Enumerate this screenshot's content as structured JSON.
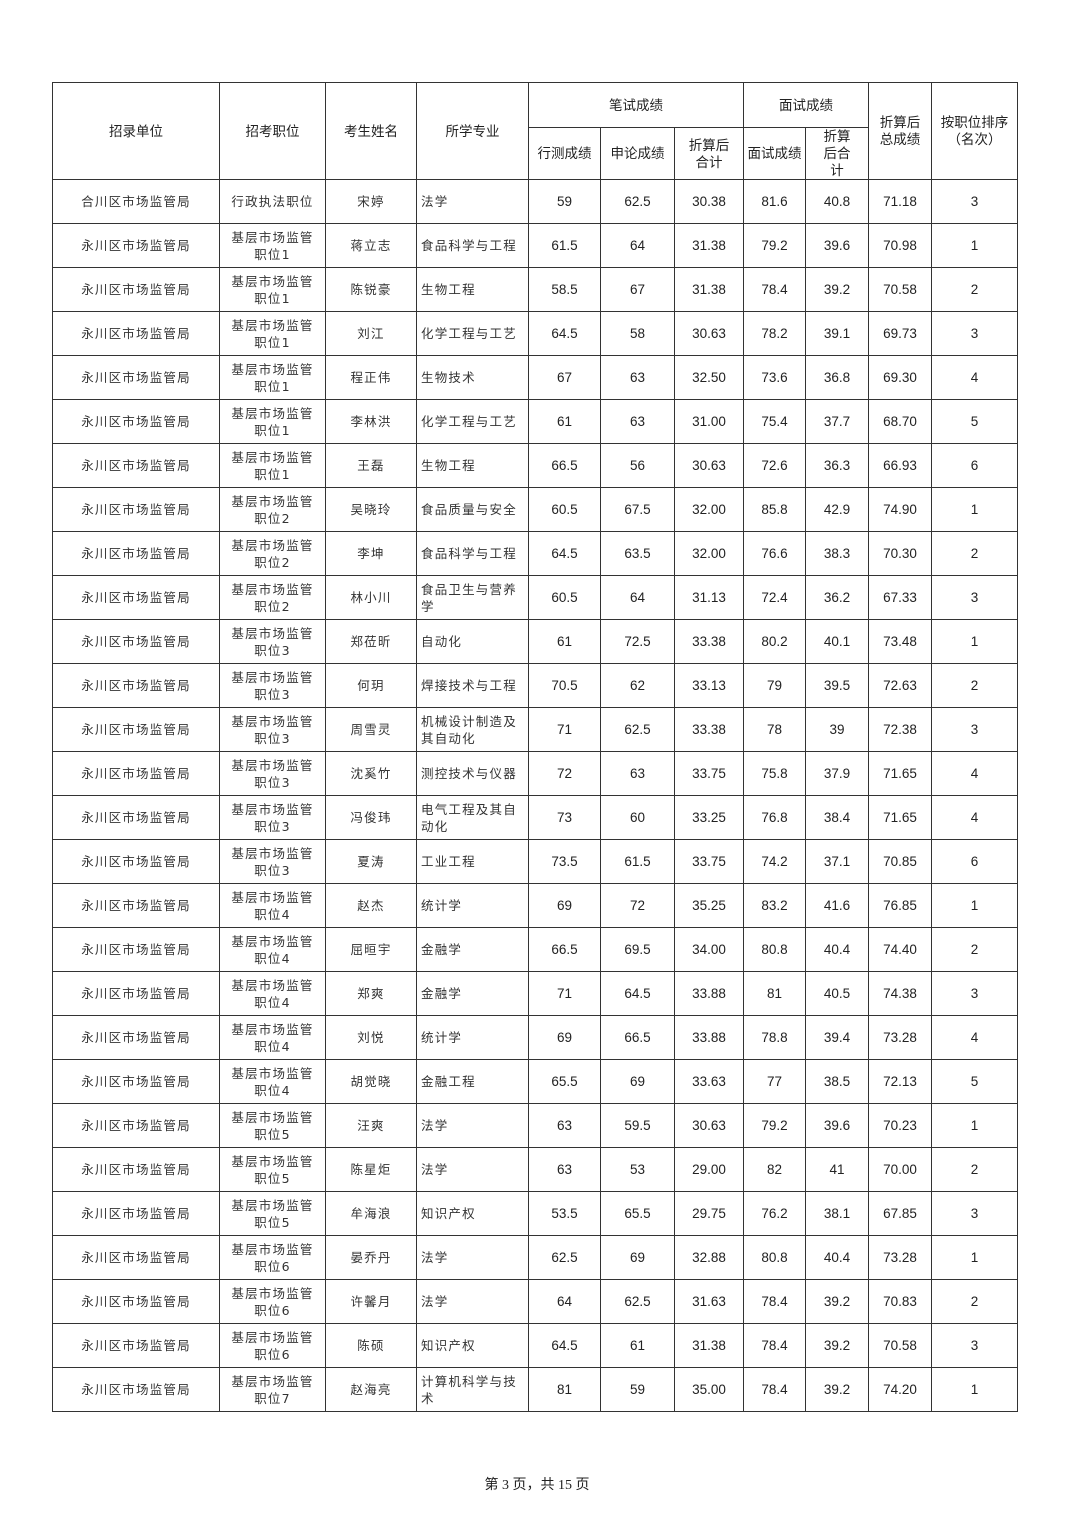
{
  "headers": {
    "unit": "招录单位",
    "position": "招考职位",
    "name": "考生姓名",
    "major": "所学专业",
    "written": "笔试成绩",
    "xingce": "行测成绩",
    "shenlun": "申论成绩",
    "written_converted": "折算后合计",
    "interview": "面试成绩",
    "interview_score": "面试成绩",
    "interview_converted": "折算后合计",
    "total": "折算后总成绩",
    "rank": "按职位排序（名次）"
  },
  "rows": [
    [
      "合川区市场监管局",
      "行政执法职位",
      "宋婷",
      "法学",
      "59",
      "62.5",
      "30.38",
      "81.6",
      "40.8",
      "71.18",
      "3"
    ],
    [
      "永川区市场监管局",
      "基层市场监管职位1",
      "蒋立志",
      "食品科学与工程",
      "61.5",
      "64",
      "31.38",
      "79.2",
      "39.6",
      "70.98",
      "1"
    ],
    [
      "永川区市场监管局",
      "基层市场监管职位1",
      "陈锐豪",
      "生物工程",
      "58.5",
      "67",
      "31.38",
      "78.4",
      "39.2",
      "70.58",
      "2"
    ],
    [
      "永川区市场监管局",
      "基层市场监管职位1",
      "刘江",
      "化学工程与工艺",
      "64.5",
      "58",
      "30.63",
      "78.2",
      "39.1",
      "69.73",
      "3"
    ],
    [
      "永川区市场监管局",
      "基层市场监管职位1",
      "程正伟",
      "生物技术",
      "67",
      "63",
      "32.50",
      "73.6",
      "36.8",
      "69.30",
      "4"
    ],
    [
      "永川区市场监管局",
      "基层市场监管职位1",
      "李林洪",
      "化学工程与工艺",
      "61",
      "63",
      "31.00",
      "75.4",
      "37.7",
      "68.70",
      "5"
    ],
    [
      "永川区市场监管局",
      "基层市场监管职位1",
      "王磊",
      "生物工程",
      "66.5",
      "56",
      "30.63",
      "72.6",
      "36.3",
      "66.93",
      "6"
    ],
    [
      "永川区市场监管局",
      "基层市场监管职位2",
      "吴晓玲",
      "食品质量与安全",
      "60.5",
      "67.5",
      "32.00",
      "85.8",
      "42.9",
      "74.90",
      "1"
    ],
    [
      "永川区市场监管局",
      "基层市场监管职位2",
      "李坤",
      "食品科学与工程",
      "64.5",
      "63.5",
      "32.00",
      "76.6",
      "38.3",
      "70.30",
      "2"
    ],
    [
      "永川区市场监管局",
      "基层市场监管职位2",
      "林小川",
      "食品卫生与营养学",
      "60.5",
      "64",
      "31.13",
      "72.4",
      "36.2",
      "67.33",
      "3"
    ],
    [
      "永川区市场监管局",
      "基层市场监管职位3",
      "郑莅昕",
      "自动化",
      "61",
      "72.5",
      "33.38",
      "80.2",
      "40.1",
      "73.48",
      "1"
    ],
    [
      "永川区市场监管局",
      "基层市场监管职位3",
      "何玥",
      "焊接技术与工程",
      "70.5",
      "62",
      "33.13",
      "79",
      "39.5",
      "72.63",
      "2"
    ],
    [
      "永川区市场监管局",
      "基层市场监管职位3",
      "周雪灵",
      "机械设计制造及其自动化",
      "71",
      "62.5",
      "33.38",
      "78",
      "39",
      "72.38",
      "3"
    ],
    [
      "永川区市场监管局",
      "基层市场监管职位3",
      "沈奚竹",
      "测控技术与仪器",
      "72",
      "63",
      "33.75",
      "75.8",
      "37.9",
      "71.65",
      "4"
    ],
    [
      "永川区市场监管局",
      "基层市场监管职位3",
      "冯俊玮",
      "电气工程及其自动化",
      "73",
      "60",
      "33.25",
      "76.8",
      "38.4",
      "71.65",
      "4"
    ],
    [
      "永川区市场监管局",
      "基层市场监管职位3",
      "夏涛",
      "工业工程",
      "73.5",
      "61.5",
      "33.75",
      "74.2",
      "37.1",
      "70.85",
      "6"
    ],
    [
      "永川区市场监管局",
      "基层市场监管职位4",
      "赵杰",
      "统计学",
      "69",
      "72",
      "35.25",
      "83.2",
      "41.6",
      "76.85",
      "1"
    ],
    [
      "永川区市场监管局",
      "基层市场监管职位4",
      "屈晅宇",
      "金融学",
      "66.5",
      "69.5",
      "34.00",
      "80.8",
      "40.4",
      "74.40",
      "2"
    ],
    [
      "永川区市场监管局",
      "基层市场监管职位4",
      "郑爽",
      "金融学",
      "71",
      "64.5",
      "33.88",
      "81",
      "40.5",
      "74.38",
      "3"
    ],
    [
      "永川区市场监管局",
      "基层市场监管职位4",
      "刘悦",
      "统计学",
      "69",
      "66.5",
      "33.88",
      "78.8",
      "39.4",
      "73.28",
      "4"
    ],
    [
      "永川区市场监管局",
      "基层市场监管职位4",
      "胡觉晓",
      "金融工程",
      "65.5",
      "69",
      "33.63",
      "77",
      "38.5",
      "72.13",
      "5"
    ],
    [
      "永川区市场监管局",
      "基层市场监管职位5",
      "汪爽",
      "法学",
      "63",
      "59.5",
      "30.63",
      "79.2",
      "39.6",
      "70.23",
      "1"
    ],
    [
      "永川区市场监管局",
      "基层市场监管职位5",
      "陈星炬",
      "法学",
      "63",
      "53",
      "29.00",
      "82",
      "41",
      "70.00",
      "2"
    ],
    [
      "永川区市场监管局",
      "基层市场监管职位5",
      "牟海浪",
      "知识产权",
      "53.5",
      "65.5",
      "29.75",
      "76.2",
      "38.1",
      "67.85",
      "3"
    ],
    [
      "永川区市场监管局",
      "基层市场监管职位6",
      "晏乔丹",
      "法学",
      "62.5",
      "69",
      "32.88",
      "80.8",
      "40.4",
      "73.28",
      "1"
    ],
    [
      "永川区市场监管局",
      "基层市场监管职位6",
      "许馨月",
      "法学",
      "64",
      "62.5",
      "31.63",
      "78.4",
      "39.2",
      "70.83",
      "2"
    ],
    [
      "永川区市场监管局",
      "基层市场监管职位6",
      "陈硕",
      "知识产权",
      "64.5",
      "61",
      "31.38",
      "78.4",
      "39.2",
      "70.58",
      "3"
    ],
    [
      "永川区市场监管局",
      "基层市场监管职位7",
      "赵海亮",
      "计算机科学与技术",
      "81",
      "59",
      "35.00",
      "78.4",
      "39.2",
      "74.20",
      "1"
    ]
  ],
  "footer": "第 3 页，共 15 页"
}
